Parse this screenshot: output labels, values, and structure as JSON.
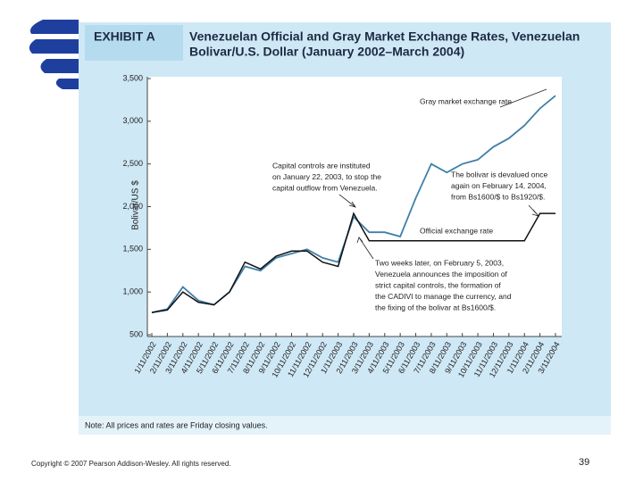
{
  "exhibit": "EXHIBIT A",
  "chart_data": {
    "type": "line",
    "title": [
      "Venezuelan Official and Gray Market Exchange Rates, Venezuelan",
      "Bolivar/U.S. Dollar (January 2002–March 2004)"
    ],
    "ylabel": "Bolivar/US $",
    "categories": [
      "1/11/2002",
      "2/11/2002",
      "3/11/2002",
      "4/11/2002",
      "5/11/2002",
      "6/11/2002",
      "7/11/2002",
      "8/11/2002",
      "9/11/2002",
      "10/11/2002",
      "11/11/2002",
      "12/11/2002",
      "1/11/2003",
      "2/11/2003",
      "3/11/2003",
      "4/11/2003",
      "5/11/2003",
      "6/11/2003",
      "7/11/2003",
      "8/11/2003",
      "9/11/2003",
      "10/11/2003",
      "11/11/2003",
      "12/11/2003",
      "1/11/2004",
      "2/11/2004",
      "3/11/2004"
    ],
    "series": [
      {
        "name": "Gray market exchange rate",
        "color": "#3f7fa8",
        "values": [
          760,
          800,
          1060,
          900,
          850,
          1000,
          1300,
          1250,
          1400,
          1450,
          1500,
          1400,
          1350,
          1880,
          1700,
          1700,
          1650,
          2100,
          2500,
          2400,
          2500,
          2550,
          2700,
          2800,
          2950,
          3150,
          3300
        ]
      },
      {
        "name": "Official exchange rate",
        "color": "#111111",
        "values": [
          760,
          790,
          1000,
          880,
          850,
          1000,
          1350,
          1270,
          1420,
          1480,
          1480,
          1350,
          1300,
          1920,
          1600,
          1600,
          1600,
          1600,
          1600,
          1600,
          1600,
          1600,
          1600,
          1600,
          1600,
          1920,
          1920
        ]
      }
    ],
    "ylim": [
      500,
      3500
    ],
    "yticks": [
      500,
      {
        "value": 1000,
        "label": "1,000"
      },
      {
        "value": 1500,
        "label": "1,500"
      },
      {
        "value": 2000,
        "label": "2,000"
      },
      {
        "value": 2500,
        "label": "2,500"
      },
      {
        "value": 3000,
        "label": "3,000"
      },
      {
        "value": 3500,
        "label": "3,500"
      }
    ],
    "annotations": [
      [
        "Capital controls are instituted",
        "on January 22, 2003, to stop the",
        "capital outflow from Venezuela."
      ],
      [
        "The bolivar is devalued once",
        "again on February 14, 2004,",
        "from Bs1600/$ to Bs1920/$."
      ],
      [
        "Two weeks later, on February 5, 2003,",
        "Venezuela announces the imposition of",
        "strict capital controls, the formation of",
        "the CADIVI to manage the currency, and",
        "the fixing of the bolivar at Bs1600/$."
      ]
    ],
    "note": "Note: All prices and rates are Friday closing values."
  },
  "footer": {
    "copyright": "Copyright © 2007 Pearson Addison-Wesley. All rights reserved.",
    "page": "39"
  }
}
